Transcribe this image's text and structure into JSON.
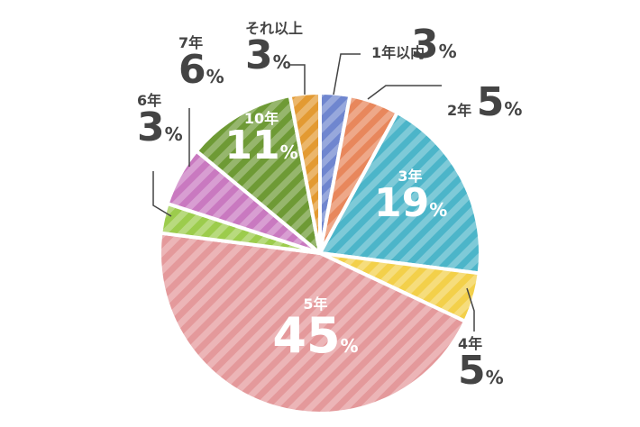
{
  "chart_data": {
    "type": "pie",
    "title": "",
    "start_angle_deg": 0,
    "direction": "clockwise",
    "unit": "%",
    "slices": [
      {
        "label": "1年以内",
        "value": 3,
        "color": "#6f86cf"
      },
      {
        "label": "2年",
        "value": 5,
        "color": "#e8875c"
      },
      {
        "label": "3年",
        "value": 19,
        "color": "#4cb5c9"
      },
      {
        "label": "4年",
        "value": 5,
        "color": "#f3d04a"
      },
      {
        "label": "5年",
        "value": 45,
        "color": "#e4999b"
      },
      {
        "label": "6年",
        "value": 3,
        "color": "#9ccc4c"
      },
      {
        "label": "7年",
        "value": 6,
        "color": "#c979c0"
      },
      {
        "label": "10年",
        "value": 11,
        "color": "#6e9a35"
      },
      {
        "label": "それ以上",
        "value": 3,
        "color": "#e39a32"
      }
    ]
  }
}
